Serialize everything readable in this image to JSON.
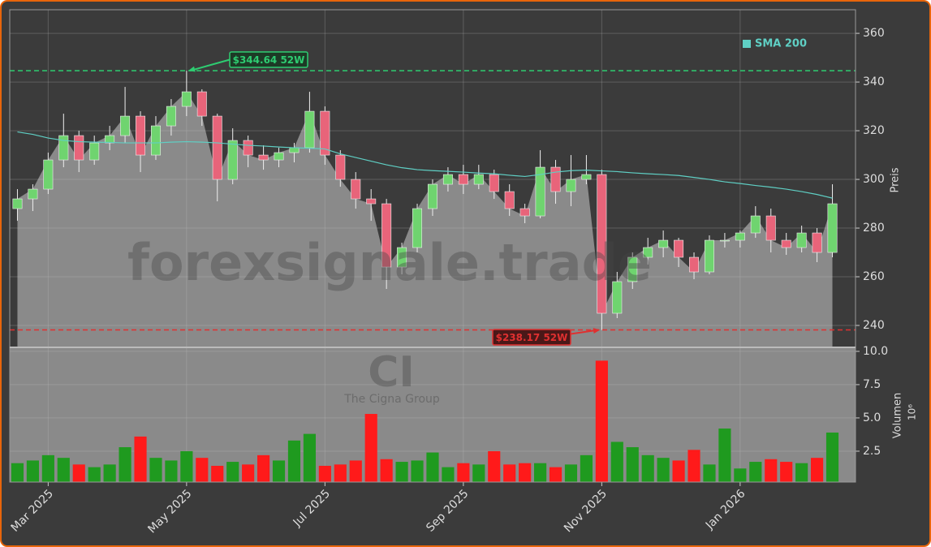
{
  "chart_data": {
    "type": "candlestick",
    "categories": [
      null,
      null,
      "Mar 2025",
      null,
      null,
      null,
      null,
      null,
      null,
      null,
      null,
      "May 2025",
      null,
      null,
      null,
      null,
      null,
      null,
      null,
      null,
      "Jul 2025",
      null,
      null,
      null,
      null,
      null,
      null,
      null,
      null,
      "Sep 2025",
      null,
      null,
      null,
      null,
      null,
      null,
      null,
      null,
      "Nov 2025",
      null,
      null,
      null,
      null,
      null,
      null,
      null,
      null,
      "Jan 2026",
      null,
      null,
      null,
      null,
      null,
      null
    ],
    "open": [
      288,
      292,
      296,
      308,
      318,
      308,
      315,
      318,
      326,
      310,
      322,
      330,
      336,
      326,
      300,
      316,
      310,
      308,
      311,
      313,
      328,
      310,
      300,
      292,
      290,
      264,
      272,
      288,
      298,
      302,
      298,
      302,
      295,
      288,
      285,
      305,
      295,
      300,
      302,
      245,
      258,
      268,
      272,
      275,
      268,
      262,
      275,
      275,
      278,
      285,
      275,
      272,
      278,
      270
    ],
    "high": [
      296,
      298,
      311,
      327,
      320,
      318,
      322,
      338,
      328,
      326,
      333,
      344.64,
      337,
      327,
      321,
      318,
      314,
      313,
      315,
      336,
      330,
      312,
      303,
      296,
      292,
      274,
      290,
      300,
      305,
      306,
      306,
      304,
      298,
      290,
      312,
      308,
      310,
      310,
      304,
      262,
      270,
      276,
      279,
      276,
      270,
      277,
      278,
      279,
      289,
      288,
      278,
      281,
      280,
      298
    ],
    "low": [
      283,
      287,
      294,
      305,
      303,
      306,
      312,
      315,
      303,
      308,
      318,
      326,
      322,
      291,
      298,
      305,
      304,
      305,
      307,
      311,
      306,
      297,
      288,
      283,
      255,
      261,
      270,
      285,
      295,
      294,
      296,
      292,
      285,
      282,
      284,
      290,
      289,
      298,
      238.17,
      243,
      255,
      265,
      268,
      264,
      259,
      261,
      272,
      272,
      276,
      270,
      269,
      270,
      266,
      268
    ],
    "close": [
      292,
      296,
      308,
      318,
      308,
      315,
      318,
      326,
      310,
      322,
      330,
      336,
      326,
      300,
      316,
      310,
      308,
      311,
      313,
      328,
      310,
      300,
      292,
      290,
      264,
      272,
      288,
      298,
      302,
      298,
      302,
      295,
      288,
      285,
      305,
      295,
      300,
      302,
      245,
      258,
      268,
      272,
      275,
      268,
      262,
      275,
      275,
      278,
      285,
      275,
      272,
      278,
      270,
      290
    ],
    "up_color": "#6fd46f",
    "down_color": "#e8647a",
    "ylim": [
      231,
      369.7
    ],
    "yticks": [
      240,
      260,
      280,
      300,
      320,
      340,
      360
    ],
    "ylabel": "Preis",
    "grid": true,
    "legend": "upper right",
    "overlays": [
      {
        "name": "SMA 200",
        "color": "#5fcfc4",
        "values": [
          319.5,
          318.5,
          317,
          316,
          315.5,
          315.3,
          315.2,
          315,
          315,
          315,
          315.3,
          315.5,
          315.3,
          315,
          314.5,
          314,
          313.7,
          313.3,
          313,
          312.8,
          312.5,
          310.5,
          309,
          307.5,
          306,
          304.8,
          304,
          303.6,
          303.3,
          303,
          302.6,
          302.3,
          301.7,
          301.2,
          302,
          303,
          303.6,
          303.8,
          303.5,
          303.2,
          302.7,
          302.3,
          302,
          301.6,
          300.8,
          300,
          299,
          298.3,
          297.5,
          296.8,
          296,
          295,
          293.8,
          292.3
        ]
      }
    ],
    "annotations": [
      {
        "value": 344.64,
        "label": "$344.64 52W",
        "color": "#2ecc71"
      },
      {
        "value": 238.17,
        "label": "$238.17 52W",
        "color": "#e03030"
      }
    ],
    "volume": {
      "values": [
        1.6,
        1.8,
        2.2,
        2.0,
        1.5,
        1.3,
        1.5,
        2.8,
        3.6,
        2.0,
        1.8,
        2.5,
        2.0,
        1.4,
        1.7,
        1.5,
        2.2,
        1.8,
        3.3,
        3.8,
        1.4,
        1.5,
        1.8,
        5.3,
        1.9,
        1.7,
        1.8,
        2.4,
        1.3,
        1.6,
        1.5,
        2.5,
        1.5,
        1.6,
        1.6,
        1.3,
        1.5,
        2.2,
        9.3,
        3.2,
        2.8,
        2.2,
        2.0,
        1.8,
        2.6,
        1.5,
        4.2,
        1.2,
        1.7,
        1.9,
        1.7,
        1.6,
        2.0,
        3.9
      ],
      "up_color": "#1f9a1f",
      "down_color": "#ff1a1a",
      "ylim": [
        0.18,
        10.3
      ],
      "yticks": [
        2.5,
        {
          "value": 5,
          "label": "5.0"
        },
        7.5,
        {
          "value": 10,
          "label": "10.0"
        }
      ],
      "ylabel": "Volumen",
      "offset_label": "10⁶"
    },
    "watermarks": [
      "forexsignale.trade",
      "CI",
      "The Cigna Group"
    ]
  }
}
